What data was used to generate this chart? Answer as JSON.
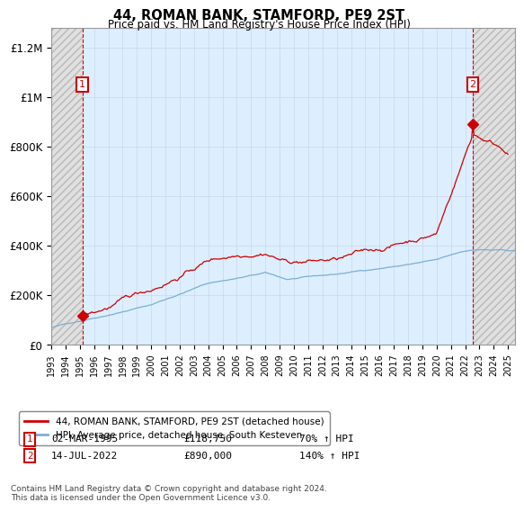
{
  "title": "44, ROMAN BANK, STAMFORD, PE9 2ST",
  "subtitle": "Price paid vs. HM Land Registry's House Price Index (HPI)",
  "ylabel_ticks": [
    "£0",
    "£200K",
    "£400K",
    "£600K",
    "£800K",
    "£1M",
    "£1.2M"
  ],
  "ytick_values": [
    0,
    200000,
    400000,
    600000,
    800000,
    1000000,
    1200000
  ],
  "ylim": [
    0,
    1280000
  ],
  "xlim_start": 1993.0,
  "xlim_end": 2025.5,
  "purchase1_x": 1995.17,
  "purchase1_y": 118750,
  "purchase2_x": 2022.54,
  "purchase2_y": 890000,
  "legend_line1": "44, ROMAN BANK, STAMFORD, PE9 2ST (detached house)",
  "legend_line2": "HPI: Average price, detached house, South Kesteven",
  "annotation1_date": "02-MAR-1995",
  "annotation1_price": "£118,750",
  "annotation1_hpi": "70% ↑ HPI",
  "annotation2_date": "14-JUL-2022",
  "annotation2_price": "£890,000",
  "annotation2_hpi": "140% ↑ HPI",
  "footer": "Contains HM Land Registry data © Crown copyright and database right 2024.\nThis data is licensed under the Open Government Licence v3.0.",
  "hpi_color": "#7bafd4",
  "price_color": "#cc0000",
  "grid_color": "#c8d8e8",
  "bg_color": "#ddeeff",
  "hatch_color": "#b8b8b8"
}
